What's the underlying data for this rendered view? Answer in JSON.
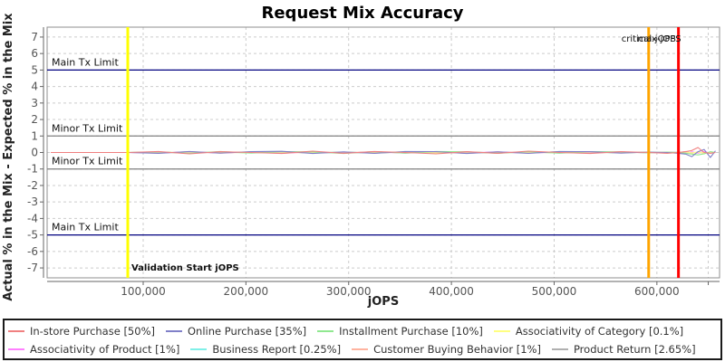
{
  "title": "Request Mix Accuracy",
  "chart_data": {
    "type": "line",
    "title": "Request Mix Accuracy",
    "xlabel": "jOPS",
    "ylabel": "Actual % in the Mix - Expected % in the Mix",
    "xlim": [
      6500,
      661000
    ],
    "ylim": [
      -7.6,
      7.6
    ],
    "grid": true,
    "x_ticks": [
      {
        "v": 100000,
        "label": "100,000"
      },
      {
        "v": 200000,
        "label": "200,000"
      },
      {
        "v": 300000,
        "label": "300,000"
      },
      {
        "v": 400000,
        "label": "400,000"
      },
      {
        "v": 500000,
        "label": "500,000"
      },
      {
        "v": 600000,
        "label": "600,000"
      },
      {
        "v": 650000,
        "label": ""
      }
    ],
    "y_ticks": [
      -7,
      -6,
      -5,
      -4,
      -3,
      -2,
      -1,
      0,
      1,
      2,
      3,
      4,
      5,
      6,
      7
    ],
    "reference_lines": [
      {
        "y": 5,
        "label": "Main Tx Limit",
        "color": "#000080"
      },
      {
        "y": 1,
        "label": "Minor Tx Limit",
        "color": "#808080"
      },
      {
        "y": -1,
        "label": "Minor Tx Limit",
        "color": "#808080"
      },
      {
        "y": -5,
        "label": "Main Tx Limit",
        "color": "#000080"
      }
    ],
    "vertical_markers": [
      {
        "x": 85000,
        "label": "Validation Start jOPS",
        "color": "#FFFF00",
        "label_position": "bottom-right"
      },
      {
        "x": 592000,
        "label": "critical-jOPS",
        "color": "#FFA500",
        "label_position": "top-center"
      },
      {
        "x": 621000,
        "label": "max-jOPS",
        "color": "#FF0000",
        "label_position": "top-end"
      }
    ],
    "x": [
      10000,
      40000,
      70000,
      85000,
      115000,
      145000,
      175000,
      205000,
      235000,
      265000,
      295000,
      325000,
      355000,
      385000,
      415000,
      445000,
      475000,
      505000,
      535000,
      565000,
      592000,
      610000,
      621000,
      628000,
      634000,
      640000,
      646000,
      652000,
      657000
    ],
    "series": [
      {
        "name": "In-store Purchase",
        "mix": "50%",
        "color": "#F08080",
        "values": [
          0,
          0,
          0,
          0,
          0.06,
          -0.08,
          0.05,
          0,
          -0.06,
          0.08,
          -0.05,
          0.06,
          0,
          -0.08,
          0.05,
          -0.05,
          0.08,
          0,
          -0.06,
          0.05,
          0,
          -0.05,
          0,
          0.05,
          0.12,
          0.3,
          0,
          -0.05,
          0
        ]
      },
      {
        "name": "Online Purchase",
        "mix": "35%",
        "color": "#8080C8",
        "values": [
          0,
          0,
          0,
          0,
          -0.05,
          0.06,
          -0.04,
          0.05,
          0.07,
          -0.06,
          0.04,
          -0.05,
          0.06,
          0.05,
          -0.06,
          0.04,
          -0.05,
          0.06,
          0.05,
          -0.04,
          0.03,
          0,
          -0.05,
          -0.1,
          -0.25,
          0.05,
          0.18,
          -0.3,
          0.1
        ]
      },
      {
        "name": "Installment Purchase",
        "mix": "10%",
        "color": "#90E890",
        "values": [
          0,
          0,
          0,
          0,
          0.04,
          -0.05,
          0.06,
          -0.04,
          0.05,
          0.04,
          -0.06,
          0.05,
          -0.04,
          0.06,
          0.04,
          -0.05,
          0.06,
          -0.04,
          0.05,
          0.04,
          -0.03,
          0.02,
          0,
          -0.05,
          -0.1,
          -0.15,
          -0.08,
          0.05,
          0
        ]
      },
      {
        "name": "Associativity of Category",
        "mix": "0.1%",
        "color": "#FFFF80",
        "values": [
          0,
          0,
          0,
          0,
          0.02,
          -0.02,
          0.03,
          -0.02,
          0.02,
          -0.03,
          0.02,
          -0.02,
          0.03,
          -0.02,
          0.02,
          -0.03,
          0.02,
          -0.02,
          0.03,
          -0.02,
          0.02,
          0,
          -0.02,
          0.03,
          -0.02,
          0.02,
          -0.03,
          0.02,
          0
        ]
      },
      {
        "name": "Associativity of Product",
        "mix": "1%",
        "color": "#FF80FF",
        "values": [
          0,
          0,
          0,
          0,
          -0.03,
          0.04,
          -0.03,
          0.04,
          -0.04,
          0.03,
          -0.03,
          0.04,
          -0.04,
          0.03,
          -0.03,
          0.04,
          -0.04,
          0.03,
          -0.03,
          0.04,
          -0.03,
          0.02,
          0,
          -0.05,
          0.04,
          -0.04,
          0.05,
          -0.03,
          0
        ]
      },
      {
        "name": "Business Report",
        "mix": "0.25%",
        "color": "#80F0E8",
        "values": [
          0,
          0,
          0,
          0,
          0.02,
          -0.03,
          0.02,
          -0.02,
          0.03,
          -0.02,
          0.02,
          -0.03,
          0.02,
          -0.02,
          0.03,
          -0.02,
          0.02,
          -0.03,
          0.02,
          -0.02,
          0.02,
          0,
          0.02,
          -0.04,
          0.03,
          -0.03,
          0.04,
          -0.02,
          0
        ]
      },
      {
        "name": "Customer Buying Behavior",
        "mix": "1%",
        "color": "#FFB4A0",
        "values": [
          0,
          0,
          0,
          0,
          -0.04,
          0.05,
          -0.04,
          0.03,
          -0.05,
          0.04,
          -0.03,
          0.05,
          -0.04,
          0.03,
          -0.05,
          0.04,
          -0.03,
          0.05,
          -0.04,
          0.03,
          -0.03,
          0.02,
          0,
          0.06,
          -0.05,
          0.04,
          -0.06,
          0.03,
          0
        ]
      },
      {
        "name": "Product Return",
        "mix": "2.65%",
        "color": "#B0B0B0",
        "values": [
          0,
          0,
          0,
          0,
          0.03,
          -0.04,
          0.03,
          -0.03,
          0.04,
          -0.03,
          0.03,
          -0.04,
          0.03,
          -0.03,
          0.04,
          -0.03,
          0.03,
          -0.04,
          0.03,
          -0.03,
          0.02,
          0,
          -0.02,
          0.05,
          -0.04,
          0.03,
          -0.05,
          0.03,
          0
        ]
      }
    ]
  },
  "legend": {
    "items": [
      {
        "label": "In-store Purchase [50%]",
        "color": "#F08080"
      },
      {
        "label": "Online Purchase [35%]",
        "color": "#8080C8"
      },
      {
        "label": "Installment Purchase [10%]",
        "color": "#90E890"
      },
      {
        "label": "Associativity of Category [0.1%]",
        "color": "#FFFF80"
      },
      {
        "label": "Associativity of Product [1%]",
        "color": "#FF80FF"
      },
      {
        "label": "Business Report [0.25%]",
        "color": "#80F0E8"
      },
      {
        "label": "Customer Buying Behavior [1%]",
        "color": "#FFB4A0"
      },
      {
        "label": "Product Return [2.65%]",
        "color": "#B0B0B0"
      }
    ],
    "items_per_row": 4
  }
}
